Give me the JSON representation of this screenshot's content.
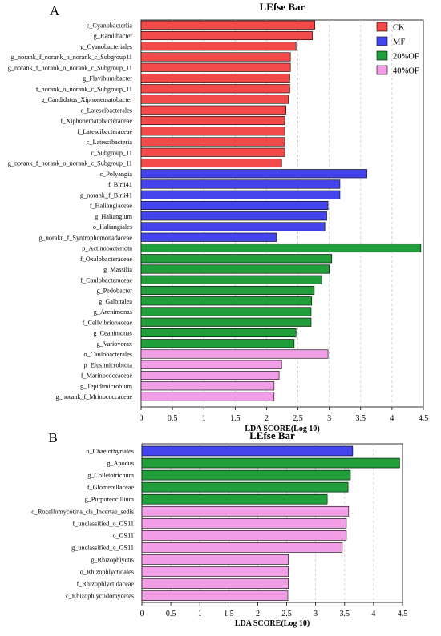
{
  "chart_data": [
    {
      "type": "bar",
      "panel_label": "A",
      "title": "LEfse Bar",
      "xlabel": "LDA SCORE(Log 10)",
      "xlim": [
        0,
        4.5
      ],
      "xticks": [
        "0",
        "0.5",
        "1",
        "1.5",
        "2",
        "2.5",
        "3",
        "3.5",
        "4",
        "4.5"
      ],
      "grid": "vertical dashed",
      "legend_position": "top-right",
      "legend": [
        {
          "label": "CK",
          "color": "#f24a4a"
        },
        {
          "label": "MF",
          "color": "#4444ee"
        },
        {
          "label": "20%OF",
          "color": "#1f9e3a"
        },
        {
          "label": "40%OF",
          "color": "#f29ee6"
        }
      ],
      "bars": [
        {
          "label": "c_Cyanobacteriia",
          "value": 2.77,
          "group": "CK"
        },
        {
          "label": "g_Ramlibacter",
          "value": 2.73,
          "group": "CK"
        },
        {
          "label": "g_Cyanobacteriales",
          "value": 2.47,
          "group": "CK"
        },
        {
          "label": "g_norank_f_norank_o_norank_c_Subgroup11",
          "value": 2.38,
          "group": "CK"
        },
        {
          "label": "g_norank_f_norank_o_norank_c_Subgroup_11",
          "value": 2.38,
          "group": "CK"
        },
        {
          "label": "g_Flavihumibacter",
          "value": 2.37,
          "group": "CK"
        },
        {
          "label": "f_norank_o_norank_c_Subgroup_11",
          "value": 2.37,
          "group": "CK"
        },
        {
          "label": "g_Candidatus_Xiphonematobacter",
          "value": 2.35,
          "group": "CK"
        },
        {
          "label": "o_Latescibacterales",
          "value": 2.31,
          "group": "CK"
        },
        {
          "label": "f_Xiphonematobacteraceae",
          "value": 2.29,
          "group": "CK"
        },
        {
          "label": "f_Latescibacteraceae",
          "value": 2.29,
          "group": "CK"
        },
        {
          "label": "c_Latescibacteria",
          "value": 2.29,
          "group": "CK"
        },
        {
          "label": "c_Subgroup_11",
          "value": 2.29,
          "group": "CK"
        },
        {
          "label": "g_norank_f_norank_o_norank_c_Subgroup_11",
          "value": 2.24,
          "group": "CK"
        },
        {
          "label": "c_Polyangia",
          "value": 3.6,
          "group": "MF"
        },
        {
          "label": "f_Blrii41",
          "value": 3.17,
          "group": "MF"
        },
        {
          "label": "g_norank_f_Blrii41",
          "value": 3.17,
          "group": "MF"
        },
        {
          "label": "f_Haliangiaceae",
          "value": 2.98,
          "group": "MF"
        },
        {
          "label": "g_Haliangium",
          "value": 2.96,
          "group": "MF"
        },
        {
          "label": "o_Haliangiales",
          "value": 2.93,
          "group": "MF"
        },
        {
          "label": "g_norakn_f_Syntrophomonadaceae",
          "value": 2.16,
          "group": "MF"
        },
        {
          "label": "p_Actinobacteriota",
          "value": 4.46,
          "group": "20%OF"
        },
        {
          "label": "f_Oxalobacteraceae",
          "value": 3.04,
          "group": "20%OF"
        },
        {
          "label": "g_Massilia",
          "value": 3.0,
          "group": "20%OF"
        },
        {
          "label": "f_Caulobacteraceae",
          "value": 2.88,
          "group": "20%OF"
        },
        {
          "label": "g_Pedobacter",
          "value": 2.76,
          "group": "20%OF"
        },
        {
          "label": "g_Galbitalea",
          "value": 2.72,
          "group": "20%OF"
        },
        {
          "label": "g_Arenimonas",
          "value": 2.71,
          "group": "20%OF"
        },
        {
          "label": "f_Cellvibrionaceae",
          "value": 2.71,
          "group": "20%OF"
        },
        {
          "label": "g_Ceanimonas",
          "value": 2.47,
          "group": "20%OF"
        },
        {
          "label": "g_Variovorax",
          "value": 2.44,
          "group": "20%OF"
        },
        {
          "label": "o_Caulobacterales",
          "value": 2.98,
          "group": "40%OF"
        },
        {
          "label": "p_Elusimicrobiota",
          "value": 2.24,
          "group": "40%OF"
        },
        {
          "label": "f_Marinococcaceae",
          "value": 2.2,
          "group": "40%OF"
        },
        {
          "label": "g_Tepidimicrobium",
          "value": 2.12,
          "group": "40%OF"
        },
        {
          "label": "g_norank_f_Mrinococcaceae",
          "value": 2.12,
          "group": "40%OF"
        }
      ]
    },
    {
      "type": "bar",
      "panel_label": "B",
      "title": "LEfse Bar",
      "xlabel": "LDA SCORE(Log 10)",
      "xlim": [
        0,
        4.5
      ],
      "xticks": [
        "0",
        "0.5",
        "1",
        "1.5",
        "2",
        "2.5",
        "3",
        "3.5",
        "4",
        "4.5"
      ],
      "grid": "vertical dashed",
      "bars": [
        {
          "label": "o_Chaetothyriales",
          "value": 3.64,
          "group": "MF"
        },
        {
          "label": "g_Apodus",
          "value": 4.45,
          "group": "20%OF"
        },
        {
          "label": "g_Colletotrichum",
          "value": 3.6,
          "group": "20%OF"
        },
        {
          "label": "f_Glomerellaceae",
          "value": 3.56,
          "group": "20%OF"
        },
        {
          "label": "g_Purpureocillium",
          "value": 3.2,
          "group": "20%OF"
        },
        {
          "label": "c_Rozellomycotina_cls_Incertae_sedis",
          "value": 3.57,
          "group": "40%OF"
        },
        {
          "label": "f_unclassified_o_GS11",
          "value": 3.53,
          "group": "40%OF"
        },
        {
          "label": "o_GS11",
          "value": 3.53,
          "group": "40%OF"
        },
        {
          "label": "g_unclassified_o_GS11",
          "value": 3.46,
          "group": "40%OF"
        },
        {
          "label": "g_Rhizophlyctis",
          "value": 2.53,
          "group": "40%OF"
        },
        {
          "label": "o_Rhizophlyctidales",
          "value": 2.53,
          "group": "40%OF"
        },
        {
          "label": "f_Rhizophlyctidaceae",
          "value": 2.53,
          "group": "40%OF"
        },
        {
          "label": "c_Rhizophlyctidomycetes",
          "value": 2.52,
          "group": "40%OF"
        }
      ]
    }
  ]
}
